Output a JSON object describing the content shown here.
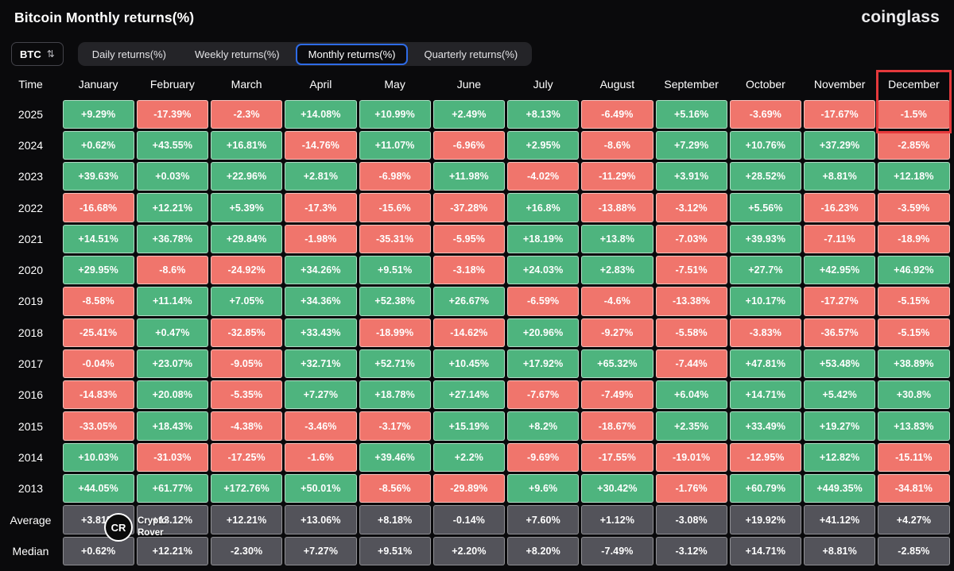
{
  "header": {
    "title": "Bitcoin Monthly returns(%)",
    "brand": "coinglass"
  },
  "controls": {
    "symbol": {
      "value": "BTC"
    },
    "tabs": [
      {
        "label": "Daily returns(%)",
        "active": false
      },
      {
        "label": "Weekly returns(%)",
        "active": false
      },
      {
        "label": "Monthly returns(%)",
        "active": true
      },
      {
        "label": "Quarterly returns(%)",
        "active": false
      }
    ]
  },
  "colors": {
    "positive": "#4eb47e",
    "negative": "#f0756c",
    "neutral": "#53535a",
    "highlight_border": "#e5393c",
    "active_tab_border": "#2e6be6",
    "background": "#0a0a0c"
  },
  "watermark": {
    "initials": "CR",
    "name_line1": "Crypto",
    "name_line2": "Rover"
  },
  "chart_data": {
    "type": "heatmap",
    "title": "Bitcoin Monthly returns(%)",
    "time_header": "Time",
    "columns": [
      "January",
      "February",
      "March",
      "April",
      "May",
      "June",
      "July",
      "August",
      "September",
      "October",
      "November",
      "December"
    ],
    "highlighted_column": "December",
    "rows": [
      {
        "label": "2025",
        "values": [
          "+9.29%",
          "-17.39%",
          "-2.3%",
          "+14.08%",
          "+10.99%",
          "+2.49%",
          "+8.13%",
          "-6.49%",
          "+5.16%",
          "-3.69%",
          "-17.67%",
          "-1.5%"
        ]
      },
      {
        "label": "2024",
        "values": [
          "+0.62%",
          "+43.55%",
          "+16.81%",
          "-14.76%",
          "+11.07%",
          "-6.96%",
          "+2.95%",
          "-8.6%",
          "+7.29%",
          "+10.76%",
          "+37.29%",
          "-2.85%"
        ]
      },
      {
        "label": "2023",
        "values": [
          "+39.63%",
          "+0.03%",
          "+22.96%",
          "+2.81%",
          "-6.98%",
          "+11.98%",
          "-4.02%",
          "-11.29%",
          "+3.91%",
          "+28.52%",
          "+8.81%",
          "+12.18%"
        ]
      },
      {
        "label": "2022",
        "values": [
          "-16.68%",
          "+12.21%",
          "+5.39%",
          "-17.3%",
          "-15.6%",
          "-37.28%",
          "+16.8%",
          "-13.88%",
          "-3.12%",
          "+5.56%",
          "-16.23%",
          "-3.59%"
        ]
      },
      {
        "label": "2021",
        "values": [
          "+14.51%",
          "+36.78%",
          "+29.84%",
          "-1.98%",
          "-35.31%",
          "-5.95%",
          "+18.19%",
          "+13.8%",
          "-7.03%",
          "+39.93%",
          "-7.11%",
          "-18.9%"
        ]
      },
      {
        "label": "2020",
        "values": [
          "+29.95%",
          "-8.6%",
          "-24.92%",
          "+34.26%",
          "+9.51%",
          "-3.18%",
          "+24.03%",
          "+2.83%",
          "-7.51%",
          "+27.7%",
          "+42.95%",
          "+46.92%"
        ]
      },
      {
        "label": "2019",
        "values": [
          "-8.58%",
          "+11.14%",
          "+7.05%",
          "+34.36%",
          "+52.38%",
          "+26.67%",
          "-6.59%",
          "-4.6%",
          "-13.38%",
          "+10.17%",
          "-17.27%",
          "-5.15%"
        ]
      },
      {
        "label": "2018",
        "values": [
          "-25.41%",
          "+0.47%",
          "-32.85%",
          "+33.43%",
          "-18.99%",
          "-14.62%",
          "+20.96%",
          "-9.27%",
          "-5.58%",
          "-3.83%",
          "-36.57%",
          "-5.15%"
        ]
      },
      {
        "label": "2017",
        "values": [
          "-0.04%",
          "+23.07%",
          "-9.05%",
          "+32.71%",
          "+52.71%",
          "+10.45%",
          "+17.92%",
          "+65.32%",
          "-7.44%",
          "+47.81%",
          "+53.48%",
          "+38.89%"
        ]
      },
      {
        "label": "2016",
        "values": [
          "-14.83%",
          "+20.08%",
          "-5.35%",
          "+7.27%",
          "+18.78%",
          "+27.14%",
          "-7.67%",
          "-7.49%",
          "+6.04%",
          "+14.71%",
          "+5.42%",
          "+30.8%"
        ]
      },
      {
        "label": "2015",
        "values": [
          "-33.05%",
          "+18.43%",
          "-4.38%",
          "-3.46%",
          "-3.17%",
          "+15.19%",
          "+8.2%",
          "-18.67%",
          "+2.35%",
          "+33.49%",
          "+19.27%",
          "+13.83%"
        ]
      },
      {
        "label": "2014",
        "values": [
          "+10.03%",
          "-31.03%",
          "-17.25%",
          "-1.6%",
          "+39.46%",
          "+2.2%",
          "-9.69%",
          "-17.55%",
          "-19.01%",
          "-12.95%",
          "+12.82%",
          "-15.11%"
        ]
      },
      {
        "label": "2013",
        "values": [
          "+44.05%",
          "+61.77%",
          "+172.76%",
          "+50.01%",
          "-8.56%",
          "-29.89%",
          "+9.6%",
          "+30.42%",
          "-1.76%",
          "+60.79%",
          "+449.35%",
          "-34.81%"
        ]
      },
      {
        "label": "Average",
        "summary": true,
        "values": [
          "+3.81%",
          "+13.12%",
          "+12.21%",
          "+13.06%",
          "+8.18%",
          "-0.14%",
          "+7.60%",
          "+1.12%",
          "-3.08%",
          "+19.92%",
          "+41.12%",
          "+4.27%"
        ]
      },
      {
        "label": "Median",
        "summary": true,
        "values": [
          "+0.62%",
          "+12.21%",
          "-2.30%",
          "+7.27%",
          "+9.51%",
          "+2.20%",
          "+8.20%",
          "-7.49%",
          "-3.12%",
          "+14.71%",
          "+8.81%",
          "-2.85%"
        ]
      }
    ]
  }
}
